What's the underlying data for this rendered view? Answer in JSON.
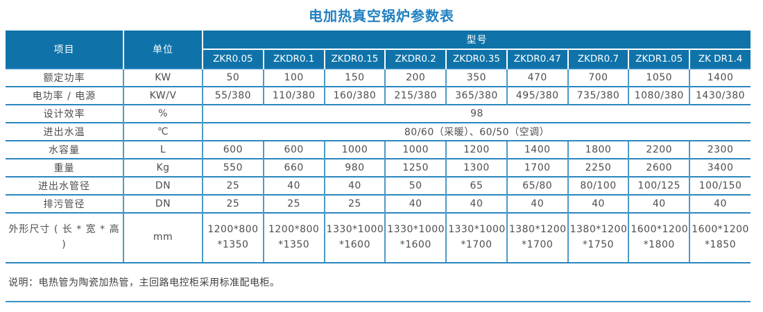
{
  "title": "电加热真空锅炉参数表",
  "colors": {
    "header_bg": "#0f73a9",
    "title_text": "#2080c0",
    "h_border": "#2a86be",
    "v_border": "#4a9ac8",
    "body_text": "#4d4d4f"
  },
  "table": {
    "header": {
      "item_label": "项目",
      "unit_label": "单位",
      "model_label": "型号",
      "models": [
        "ZKR0.05",
        "ZKDR0.1",
        "ZKDR0.15",
        "ZKDR0.2",
        "ZKDR0.35",
        "ZKDR0.47",
        "ZKDR0.7",
        "ZKDR1.05",
        "ZK DR1.4"
      ]
    },
    "rows": [
      {
        "item": "额定功率",
        "unit": "KW",
        "values": [
          "50",
          "100",
          "150",
          "200",
          "350",
          "470",
          "700",
          "1050",
          "1400"
        ]
      },
      {
        "item": "电功率 / 电源",
        "unit": "KW/V",
        "values": [
          "55/380",
          "110/380",
          "160/380",
          "215/380",
          "365/380",
          "495/380",
          "735/380",
          "1080/380",
          "1430/380"
        ]
      },
      {
        "item": "设计效率",
        "unit": "%",
        "span_value": "98"
      },
      {
        "item": "进出水温",
        "unit": "℃",
        "span_value": "80/60（采暖）、60/50（空调）"
      },
      {
        "item": "水容量",
        "unit": "L",
        "values": [
          "600",
          "600",
          "1000",
          "1000",
          "1200",
          "1400",
          "1800",
          "2200",
          "2300"
        ]
      },
      {
        "item": "重量",
        "unit": "Kg",
        "values": [
          "550",
          "660",
          "980",
          "1250",
          "1300",
          "1700",
          "2250",
          "2600",
          "3400"
        ]
      },
      {
        "item": "进出水管径",
        "unit": "DN",
        "values": [
          "25",
          "40",
          "40",
          "50",
          "65",
          "65/80",
          "80/100",
          "100/125",
          "100/150"
        ]
      },
      {
        "item": "排污管径",
        "unit": "DN",
        "values": [
          "25",
          "25",
          "25",
          "40",
          "40",
          "40",
          "40",
          "40",
          "40"
        ]
      },
      {
        "item": "外形尺寸 ( 长 * 宽 * 高 )",
        "unit": "mm",
        "values": [
          "1200*800\n*1350",
          "1200*800\n*1350",
          "1330*1000\n*1600",
          "1330*1000\n*1600",
          "1330*1000\n*1700",
          "1380*1200\n*1700",
          "1380*1200\n*1750",
          "1600*1200\n*1800",
          "1600*1200\n*1850"
        ]
      }
    ]
  },
  "note": "说明：电热管为陶瓷加热管，主回路电控柜采用标准配电柜。"
}
